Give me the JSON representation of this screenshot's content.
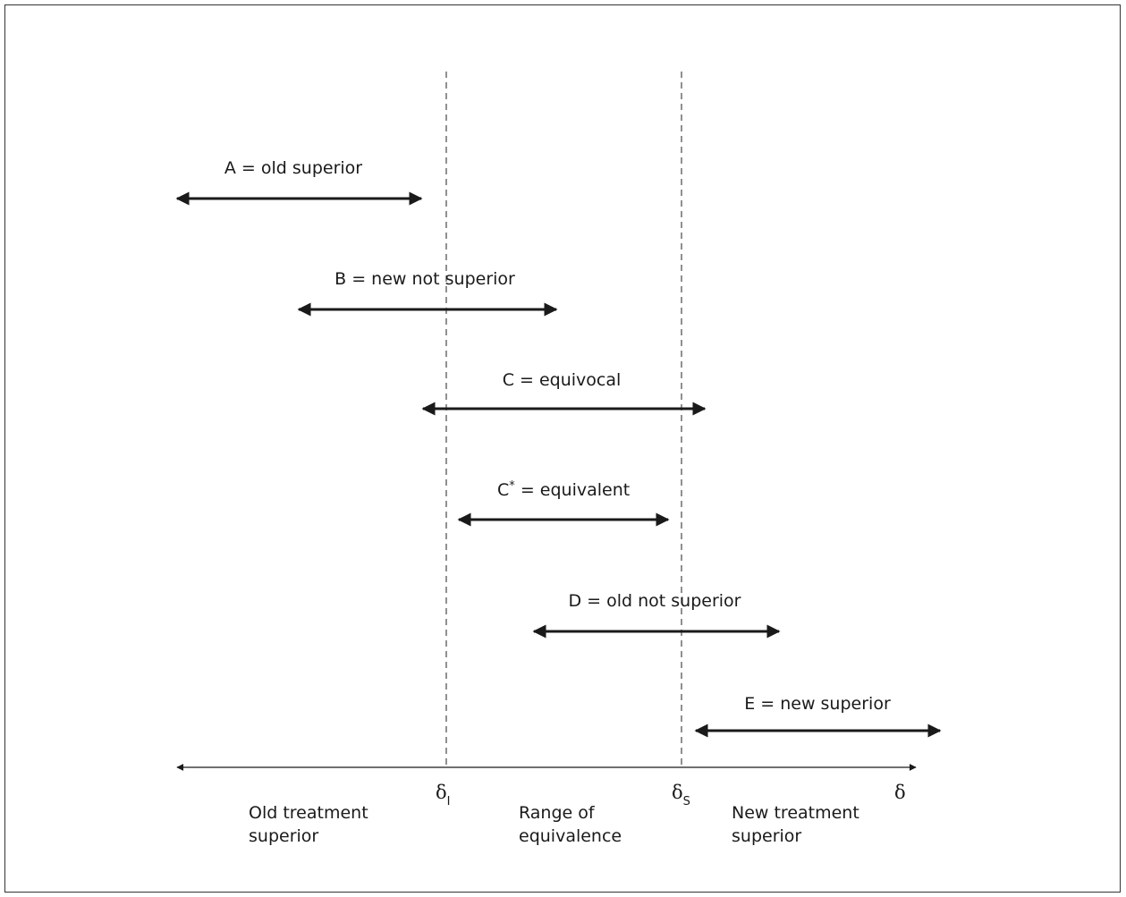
{
  "arrows": [
    {
      "id": "a",
      "label": "A = old superior"
    },
    {
      "id": "b",
      "label": "B = new not superior"
    },
    {
      "id": "c",
      "label": "C = equivocal"
    },
    {
      "id": "cstar",
      "label_main": "C",
      "label_sup": "*",
      "label_rest": " = equivalent"
    },
    {
      "id": "d",
      "label": "D = old not superior"
    },
    {
      "id": "e",
      "label": "E = new superior"
    }
  ],
  "axis": {
    "delta_symbol": "δ",
    "delta_lower_sub": "I",
    "delta_upper_sub": "S",
    "delta_end": "δ"
  },
  "regions": {
    "old": [
      "Old treatment",
      "superior"
    ],
    "range": [
      "Range of",
      "equivalence"
    ],
    "new": [
      "New treatment",
      "superior"
    ]
  },
  "colors": {
    "line": "#1a1a1a",
    "border": "#333333",
    "dashed": "#555555"
  }
}
